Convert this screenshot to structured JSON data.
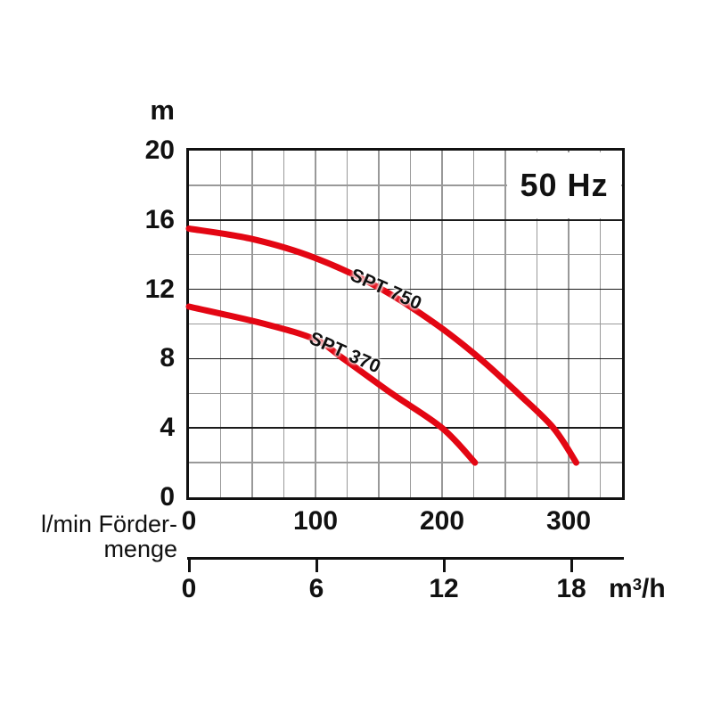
{
  "badge": {
    "label": "50 Hz"
  },
  "y_axis": {
    "unit": "m",
    "tick_labels": [
      "20",
      "16",
      "12",
      "8",
      "4",
      "0"
    ]
  },
  "x_axis_lmin": {
    "tick_labels": [
      "0",
      "100",
      "200",
      "300"
    ],
    "axis_label_line1": "l/min Förder-",
    "axis_label_line2": "menge"
  },
  "x_axis_m3h": {
    "tick_labels": [
      "0",
      "6",
      "12",
      "18"
    ],
    "unit_base": "m",
    "unit_exponent": "3",
    "unit_suffix": "/h"
  },
  "chart_data": {
    "type": "line",
    "title": "50 Hz",
    "xlabel": "Fördermenge",
    "x_units": [
      "l/min",
      "m³/h"
    ],
    "ylabel": "m",
    "x_ticks_lmin": [
      0,
      100,
      200,
      300
    ],
    "x_ticks_m3h": [
      0,
      6,
      12,
      18
    ],
    "m3h_to_lmin": 16.667,
    "y_ticks_m": [
      0,
      4,
      8,
      12,
      16,
      20
    ],
    "xlim_lmin": [
      0,
      342
    ],
    "ylim_m": [
      0,
      20
    ],
    "grid": {
      "minor_x_step_lmin": 25,
      "minor_y_step_m": 2,
      "major_y_step_m": 4
    },
    "legend_position": "labels on curves",
    "curve_color": "#e30613",
    "series": [
      {
        "name": "SPT 750",
        "color": "#e30613",
        "points_q_lmin_h_m": [
          [
            0,
            15.5
          ],
          [
            50,
            14.9
          ],
          [
            100,
            13.8
          ],
          [
            150,
            12.1
          ],
          [
            195,
            10
          ],
          [
            230,
            8
          ],
          [
            260,
            6
          ],
          [
            288,
            4
          ],
          [
            306,
            2
          ]
        ]
      },
      {
        "name": "SPT 370",
        "color": "#e30613",
        "points_q_lmin_h_m": [
          [
            0,
            11
          ],
          [
            60,
            10
          ],
          [
            100,
            9.1
          ],
          [
            122,
            8
          ],
          [
            160,
            6
          ],
          [
            200,
            4
          ],
          [
            226,
            2
          ]
        ]
      }
    ]
  }
}
